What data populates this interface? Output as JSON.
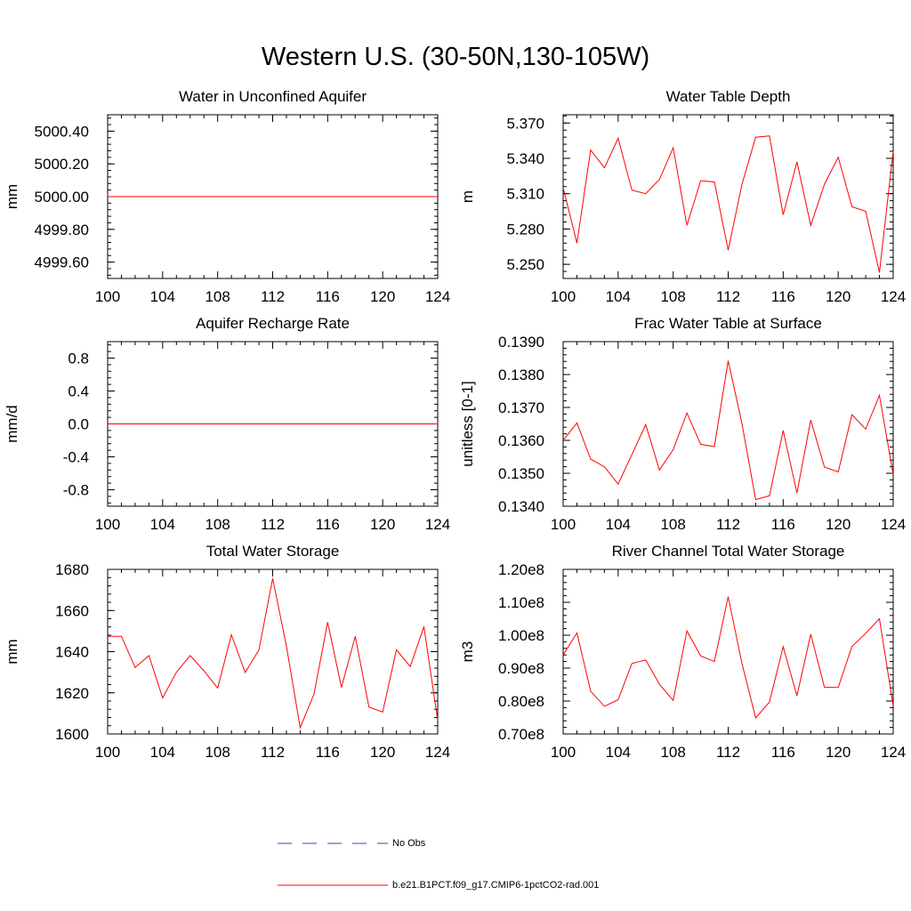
{
  "title": "Western U.S. (30-50N,130-105W)",
  "colors": {
    "model_line": "#ff0000",
    "obs_line": "#3f3fbf",
    "axis": "#000000"
  },
  "legend": {
    "items": [
      {
        "label": "No Obs",
        "style": "dashed",
        "color": "#3f3fbf"
      },
      {
        "label": "b.e21.B1PCT.f09_g17.CMIP6-1pctCO2-rad.001",
        "style": "solid",
        "color": "#ff0000"
      }
    ]
  },
  "chart_data": [
    {
      "type": "line",
      "title": "Water in Unconfined Aquifer",
      "ylabel": "mm",
      "xlim": [
        100,
        124
      ],
      "ylim": [
        4999.5,
        5000.5
      ],
      "xticks": [
        100,
        104,
        108,
        112,
        116,
        120,
        124
      ],
      "xtick_labels": [
        "100",
        "104",
        "108",
        "112",
        "116",
        "120",
        "124"
      ],
      "yticks": [
        4999.6,
        4999.8,
        5000.0,
        5000.2,
        5000.4
      ],
      "ytick_labels": [
        "4999.60",
        "4999.80",
        "5000.00",
        "5000.20",
        "5000.40"
      ],
      "x": [
        100,
        124
      ],
      "series": [
        {
          "values": [
            5000.0,
            5000.0
          ]
        }
      ]
    },
    {
      "type": "line",
      "title": "Water Table Depth",
      "ylabel": "m",
      "xlim": [
        100,
        124
      ],
      "ylim": [
        5.238,
        5.377
      ],
      "xticks": [
        100,
        104,
        108,
        112,
        116,
        120,
        124
      ],
      "xtick_labels": [
        "100",
        "104",
        "108",
        "112",
        "116",
        "120",
        "124"
      ],
      "yticks": [
        5.25,
        5.28,
        5.31,
        5.34,
        5.37
      ],
      "ytick_labels": [
        "5.250",
        "5.280",
        "5.310",
        "5.340",
        "5.370"
      ],
      "x": [
        100,
        101,
        102,
        103,
        104,
        105,
        106,
        107,
        108,
        109,
        110,
        111,
        112,
        113,
        114,
        115,
        116,
        117,
        118,
        119,
        120,
        121,
        122,
        123,
        124
      ],
      "series": [
        {
          "values": [
            5.315,
            5.268,
            5.347,
            5.332,
            5.357,
            5.313,
            5.31,
            5.322,
            5.349,
            5.283,
            5.321,
            5.32,
            5.262,
            5.318,
            5.358,
            5.359,
            5.292,
            5.337,
            5.283,
            5.318,
            5.341,
            5.299,
            5.295,
            5.243,
            5.346
          ]
        }
      ]
    },
    {
      "type": "line",
      "title": "Aquifer Recharge Rate",
      "ylabel": "mm/d",
      "xlim": [
        100,
        124
      ],
      "ylim": [
        -1.0,
        1.0
      ],
      "xticks": [
        100,
        104,
        108,
        112,
        116,
        120,
        124
      ],
      "xtick_labels": [
        "100",
        "104",
        "108",
        "112",
        "116",
        "120",
        "124"
      ],
      "yticks": [
        -0.8,
        -0.4,
        0.0,
        0.4,
        0.8
      ],
      "ytick_labels": [
        "-0.8",
        "-0.4",
        "0.0",
        "0.4",
        "0.8"
      ],
      "x": [
        100,
        124
      ],
      "series": [
        {
          "values": [
            0.0,
            0.0
          ]
        }
      ]
    },
    {
      "type": "line",
      "title": "Frac Water Table at Surface",
      "ylabel": "unitless [0-1]",
      "xlim": [
        100,
        124
      ],
      "ylim": [
        0.134,
        0.139
      ],
      "xticks": [
        100,
        104,
        108,
        112,
        116,
        120,
        124
      ],
      "xtick_labels": [
        "100",
        "104",
        "108",
        "112",
        "116",
        "120",
        "124"
      ],
      "yticks": [
        0.134,
        0.135,
        0.136,
        0.137,
        0.138,
        0.139
      ],
      "ytick_labels": [
        "0.1340",
        "0.1350",
        "0.1360",
        "0.1370",
        "0.1380",
        "0.1390"
      ],
      "x": [
        100,
        101,
        102,
        103,
        104,
        105,
        106,
        107,
        108,
        109,
        110,
        111,
        112,
        113,
        114,
        115,
        116,
        117,
        118,
        119,
        120,
        121,
        122,
        123,
        124
      ],
      "series": [
        {
          "values": [
            0.136,
            0.13653,
            0.13543,
            0.1352,
            0.13467,
            0.13557,
            0.13648,
            0.1351,
            0.13572,
            0.13683,
            0.13588,
            0.13581,
            0.13842,
            0.13651,
            0.1342,
            0.13432,
            0.1363,
            0.1344,
            0.13662,
            0.13519,
            0.13504,
            0.13678,
            0.13634,
            0.13737,
            0.13496
          ]
        }
      ]
    },
    {
      "type": "line",
      "title": "Total Water Storage",
      "ylabel": "mm",
      "xlim": [
        100,
        124
      ],
      "ylim": [
        1600,
        1680
      ],
      "xticks": [
        100,
        104,
        108,
        112,
        116,
        120,
        124
      ],
      "xtick_labels": [
        "100",
        "104",
        "108",
        "112",
        "116",
        "120",
        "124"
      ],
      "yticks": [
        1600,
        1620,
        1640,
        1660,
        1680
      ],
      "ytick_labels": [
        "1600",
        "1620",
        "1640",
        "1660",
        "1680"
      ],
      "x": [
        100,
        101,
        102,
        103,
        104,
        105,
        106,
        107,
        108,
        109,
        110,
        111,
        112,
        113,
        114,
        115,
        116,
        117,
        118,
        119,
        120,
        121,
        122,
        123,
        124
      ],
      "series": [
        {
          "values": [
            1647.5,
            1647.5,
            1632.3,
            1638.1,
            1617.5,
            1630.0,
            1638.1,
            1630.7,
            1622.3,
            1648.2,
            1629.9,
            1640.8,
            1675.6,
            1642.6,
            1603.1,
            1619.3,
            1654.3,
            1622.6,
            1647.5,
            1613.1,
            1610.7,
            1640.9,
            1632.8,
            1652.2,
            1606.6
          ]
        }
      ]
    },
    {
      "type": "line",
      "title": "River Channel Total Water Storage",
      "ylabel": "m3",
      "xlim": [
        100,
        124
      ],
      "ylim": [
        70000000.0,
        120000000.0
      ],
      "xticks": [
        100,
        104,
        108,
        112,
        116,
        120,
        124
      ],
      "xtick_labels": [
        "100",
        "104",
        "108",
        "112",
        "116",
        "120",
        "124"
      ],
      "yticks": [
        70000000.0,
        80000000.0,
        90000000.0,
        100000000.0,
        110000000.0,
        120000000.0
      ],
      "ytick_labels": [
        "0.70e8",
        "0.80e8",
        "0.90e8",
        "1.00e8",
        "1.10e8",
        "1.20e8"
      ],
      "x": [
        100,
        101,
        102,
        103,
        104,
        105,
        106,
        107,
        108,
        109,
        110,
        111,
        112,
        113,
        114,
        115,
        116,
        117,
        118,
        119,
        120,
        121,
        122,
        123,
        124
      ],
      "series": [
        {
          "values": [
            94000000.0,
            100700000.0,
            83000000.0,
            78400000.0,
            80400000.0,
            91400000.0,
            92500000.0,
            85100000.0,
            80200000.0,
            101300000.0,
            93700000.0,
            92000000.0,
            111700000.0,
            91400000.0,
            74900000.0,
            79700000.0,
            96500000.0,
            81600000.0,
            100300000.0,
            84200000.0,
            84100000.0,
            96600000.0,
            100600000.0,
            105000000.0,
            78500000.0
          ]
        }
      ]
    }
  ]
}
